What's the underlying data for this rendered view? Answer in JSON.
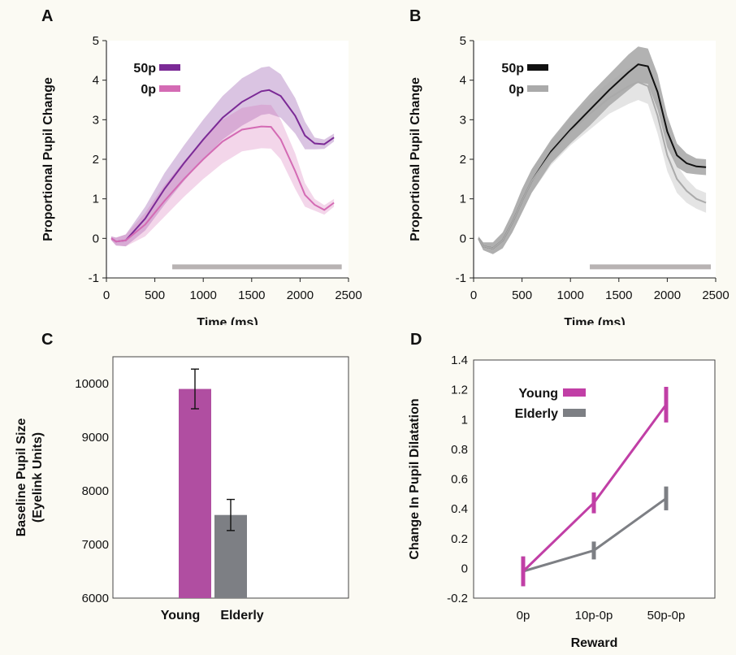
{
  "panels": {
    "a": {
      "letter": "A"
    },
    "b": {
      "letter": "B"
    },
    "c": {
      "letter": "C"
    },
    "d": {
      "letter": "D"
    }
  },
  "colors": {
    "purple_dark": "#7b2a96",
    "purple_light": "#d46bb4",
    "black": "#111111",
    "grey_light": "#aaaaaa",
    "young": "#c13fa6",
    "elderly": "#7d7f84",
    "significance_bar": "#b8b3b3"
  },
  "chart_data": [
    {
      "id": "A",
      "type": "line",
      "title": "",
      "xlabel": "Time (ms)",
      "ylabel": "Proportional Pupil Change",
      "xlim": [
        0,
        2500
      ],
      "ylim": [
        -1,
        5
      ],
      "xticks": [
        "0",
        "500",
        "1000",
        "1500",
        "2000",
        "2500"
      ],
      "yticks": [
        "-1",
        "0",
        "1",
        "2",
        "3",
        "4",
        "5"
      ],
      "legend_position": "top-left",
      "significance_range": [
        680,
        2430
      ],
      "series": [
        {
          "name": "50p",
          "color": "#7b2a96",
          "x": [
            50,
            100,
            200,
            400,
            600,
            800,
            1000,
            1200,
            1400,
            1600,
            1680,
            1800,
            1950,
            2050,
            2150,
            2250,
            2350
          ],
          "y": [
            0,
            -0.08,
            -0.05,
            0.5,
            1.25,
            1.9,
            2.5,
            3.05,
            3.45,
            3.72,
            3.75,
            3.6,
            3.1,
            2.6,
            2.4,
            2.38,
            2.55
          ],
          "err": [
            0.05,
            0.1,
            0.15,
            0.3,
            0.4,
            0.45,
            0.5,
            0.55,
            0.6,
            0.6,
            0.6,
            0.55,
            0.45,
            0.35,
            0.15,
            0.12,
            0.1
          ]
        },
        {
          "name": "0p",
          "color": "#d46bb4",
          "x": [
            50,
            100,
            200,
            400,
            600,
            800,
            1000,
            1200,
            1400,
            1600,
            1700,
            1800,
            1950,
            2050,
            2150,
            2250,
            2350
          ],
          "y": [
            0,
            -0.08,
            -0.05,
            0.35,
            0.95,
            1.5,
            2.0,
            2.45,
            2.75,
            2.83,
            2.82,
            2.5,
            1.7,
            1.1,
            0.85,
            0.72,
            0.9
          ],
          "err": [
            0.05,
            0.1,
            0.15,
            0.3,
            0.4,
            0.45,
            0.5,
            0.55,
            0.55,
            0.55,
            0.55,
            0.5,
            0.45,
            0.3,
            0.15,
            0.12,
            0.1
          ]
        }
      ]
    },
    {
      "id": "B",
      "type": "line",
      "title": "",
      "xlabel": "Time (ms)",
      "ylabel": "Proportional Pupil Change",
      "xlim": [
        0,
        2500
      ],
      "ylim": [
        -1,
        5
      ],
      "xticks": [
        "0",
        "500",
        "1000",
        "1500",
        "2000",
        "2500"
      ],
      "yticks": [
        "-1",
        "0",
        "1",
        "2",
        "3",
        "4",
        "5"
      ],
      "legend_position": "top-left",
      "significance_range": [
        1200,
        2450
      ],
      "series": [
        {
          "name": "50p",
          "color": "#111111",
          "x": [
            50,
            100,
            200,
            300,
            400,
            500,
            600,
            800,
            1000,
            1200,
            1400,
            1600,
            1700,
            1800,
            1900,
            2000,
            2100,
            2200,
            2300,
            2400
          ],
          "y": [
            0,
            -0.2,
            -0.25,
            -0.05,
            0.4,
            0.95,
            1.45,
            2.2,
            2.75,
            3.25,
            3.75,
            4.2,
            4.4,
            4.35,
            3.7,
            2.7,
            2.1,
            1.9,
            1.82,
            1.8
          ],
          "err": [
            0.05,
            0.1,
            0.15,
            0.2,
            0.25,
            0.3,
            0.3,
            0.3,
            0.35,
            0.4,
            0.4,
            0.45,
            0.45,
            0.45,
            0.45,
            0.4,
            0.3,
            0.25,
            0.2,
            0.2
          ]
        },
        {
          "name": "0p",
          "color": "#aaaaaa",
          "x": [
            50,
            100,
            200,
            300,
            400,
            500,
            600,
            800,
            1000,
            1200,
            1400,
            1600,
            1700,
            1800,
            1900,
            2000,
            2100,
            2200,
            2300,
            2400
          ],
          "y": [
            0,
            -0.2,
            -0.25,
            -0.05,
            0.4,
            0.95,
            1.45,
            2.15,
            2.7,
            3.15,
            3.55,
            3.85,
            3.95,
            3.85,
            3.1,
            2.1,
            1.5,
            1.2,
            1.0,
            0.9
          ],
          "err": [
            0.05,
            0.1,
            0.15,
            0.2,
            0.25,
            0.3,
            0.3,
            0.3,
            0.35,
            0.4,
            0.4,
            0.45,
            0.45,
            0.45,
            0.45,
            0.4,
            0.35,
            0.3,
            0.25,
            0.25
          ]
        }
      ]
    },
    {
      "id": "C",
      "type": "bar",
      "title": "",
      "xlabel": "",
      "ylabel": "Baseline Pupil Size\n(Eyelink Units)",
      "ylim": [
        6000,
        10500
      ],
      "yticks": [
        "6000",
        "7000",
        "8000",
        "9000",
        "10000"
      ],
      "categories": [
        "Young",
        "Elderly"
      ],
      "values": [
        9900,
        7550
      ],
      "errors": [
        370,
        290
      ],
      "colors": [
        "#b04ea1",
        "#7d7f84"
      ]
    },
    {
      "id": "D",
      "type": "line",
      "title": "",
      "xlabel": "Reward",
      "ylabel": "Change In Pupil Dilatation",
      "ylim": [
        -0.2,
        1.4
      ],
      "yticks": [
        "-0.2",
        "0",
        "0.2",
        "0.4",
        "0.6",
        "0.8",
        "1",
        "1.2",
        "1.4"
      ],
      "categories": [
        "0p",
        "10p-0p",
        "50p-0p"
      ],
      "legend_position": "top-left",
      "series": [
        {
          "name": "Young",
          "color": "#c13fa6",
          "values": [
            -0.02,
            0.44,
            1.1
          ],
          "err": [
            0.1,
            0.07,
            0.12
          ]
        },
        {
          "name": "Elderly",
          "color": "#7d7f84",
          "values": [
            -0.02,
            0.12,
            0.47
          ],
          "err": [
            0.1,
            0.06,
            0.08
          ]
        }
      ]
    }
  ]
}
